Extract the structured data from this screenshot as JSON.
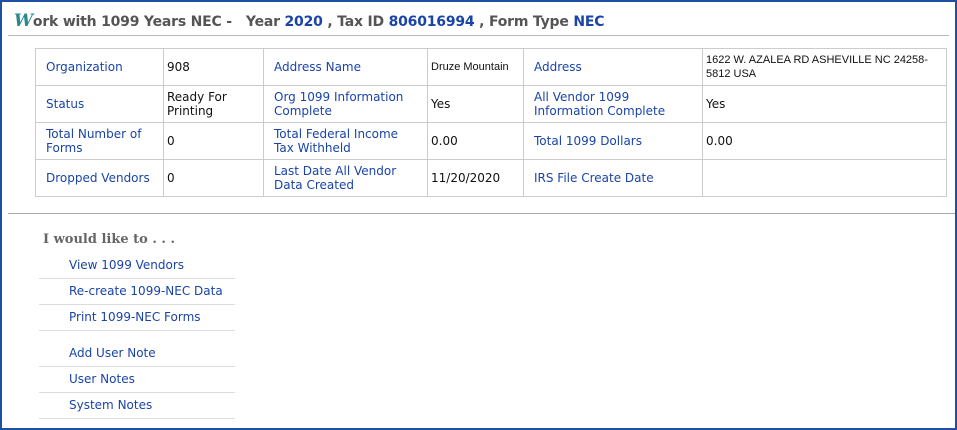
{
  "header": {
    "logo": "W",
    "title": "ork with 1099 Years NEC",
    "sep": " - ",
    "year_label": "Year",
    "year": "2020",
    "taxid_label": ", Tax ID",
    "taxid": "806016994",
    "formtype_label": ", Form Type",
    "formtype": "NEC"
  },
  "details": [
    [
      {
        "label": "Organization",
        "value": "908"
      },
      {
        "label": "Address Name",
        "value": "Druze Mountain"
      },
      {
        "label": "Address",
        "value": "1622 W. AZALEA RD  ASHEVILLE NC 24258-5812 USA"
      }
    ],
    [
      {
        "label": "Status",
        "value": "Ready For Printing"
      },
      {
        "label": "Org 1099 Information Complete",
        "value": "Yes"
      },
      {
        "label": "All Vendor 1099 Information Complete",
        "value": "Yes"
      }
    ],
    [
      {
        "label": "Total Number of Forms",
        "value": "0"
      },
      {
        "label": "Total Federal Income Tax Withheld",
        "value": "0.00"
      },
      {
        "label": "Total 1099 Dollars",
        "value": "0.00"
      }
    ],
    [
      {
        "label": "Dropped Vendors",
        "value": "0"
      },
      {
        "label": "Last Date All Vendor Data Created",
        "value": "11/20/2020"
      },
      {
        "label": "IRS File Create Date",
        "value": ""
      }
    ]
  ],
  "actions": {
    "heading": "I would like to . . .",
    "group1": [
      "View 1099 Vendors",
      "Re-create 1099-NEC Data",
      "Print 1099-NEC Forms"
    ],
    "group2": [
      "Add User Note",
      "User Notes",
      "System Notes"
    ]
  }
}
